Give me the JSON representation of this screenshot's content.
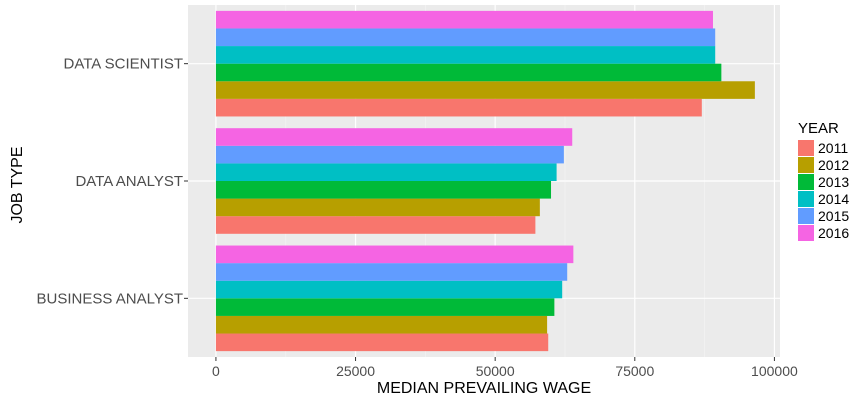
{
  "chart_data": {
    "type": "bar",
    "orientation": "horizontal",
    "xlabel": "MEDIAN PREVAILING WAGE",
    "ylabel": "JOB TYPE",
    "xlim": [
      -5000,
      101000
    ],
    "x_ticks": [
      0,
      25000,
      50000,
      75000,
      100000
    ],
    "grid": true,
    "legend_title": "YEAR",
    "legend_position": "right",
    "categories": [
      "BUSINESS ANALYST",
      "DATA ANALYST",
      "DATA SCIENTIST"
    ],
    "series": [
      {
        "name": "2011",
        "color": "#F8766D",
        "values": [
          59500,
          57200,
          87000
        ]
      },
      {
        "name": "2012",
        "color": "#B79F00",
        "values": [
          59300,
          58000,
          96500
        ]
      },
      {
        "name": "2013",
        "color": "#00BA38",
        "values": [
          60600,
          60000,
          90500
        ]
      },
      {
        "name": "2014",
        "color": "#00BFC4",
        "values": [
          62000,
          61000,
          89400
        ]
      },
      {
        "name": "2015",
        "color": "#619CFF",
        "values": [
          62900,
          62300,
          89400
        ]
      },
      {
        "name": "2016",
        "color": "#F564E3",
        "values": [
          64000,
          63800,
          89000
        ]
      }
    ]
  }
}
